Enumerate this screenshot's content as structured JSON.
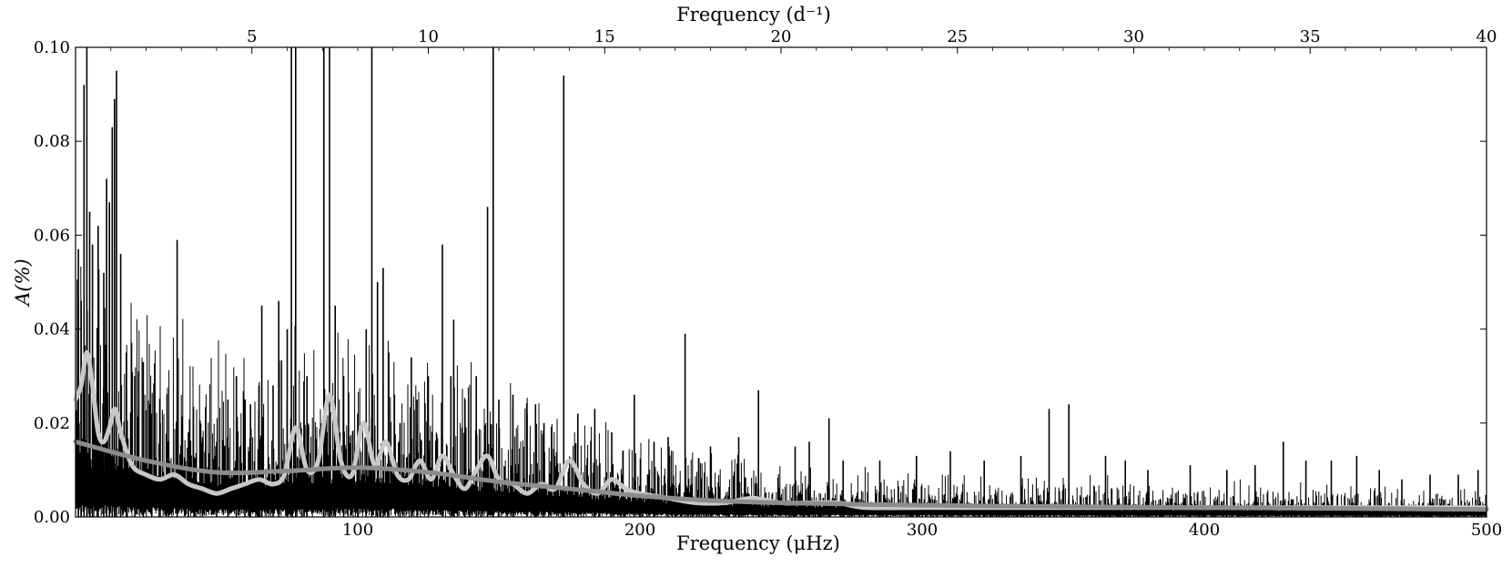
{
  "chart_data": {
    "type": "line",
    "xlabel": "Frequency (μHz)",
    "ylabel": "A(%)",
    "top_xlabel": "Frequency (d⁻¹)",
    "xlim": [
      0,
      500
    ],
    "ylim": [
      0,
      0.1
    ],
    "top_xlim_d": [
      0,
      40
    ],
    "x_ticks": [
      100,
      200,
      300,
      400,
      500
    ],
    "y_ticks": [
      0.0,
      0.02,
      0.04,
      0.06,
      0.08,
      0.1
    ],
    "y_tick_labels": [
      "0.00",
      "0.02",
      "0.04",
      "0.06",
      "0.08",
      "0.10"
    ],
    "top_x_ticks": [
      5,
      10,
      15,
      20,
      25,
      30,
      35,
      40
    ],
    "grid": false,
    "series": [
      {
        "role": "amplitude spectrum",
        "color": "#000000",
        "peaks": [
          [
            1,
            0.057
          ],
          [
            2,
            0.046
          ],
          [
            3,
            0.092
          ],
          [
            4,
            0.1
          ],
          [
            5,
            0.065
          ],
          [
            6,
            0.058
          ],
          [
            8,
            0.062
          ],
          [
            10,
            0.052
          ],
          [
            11,
            0.072
          ],
          [
            12,
            0.067
          ],
          [
            13,
            0.083
          ],
          [
            13.8,
            0.089
          ],
          [
            14.5,
            0.095
          ],
          [
            16,
            0.056
          ],
          [
            18,
            0.035
          ],
          [
            21,
            0.03
          ],
          [
            24,
            0.033
          ],
          [
            27,
            0.022
          ],
          [
            30,
            0.02
          ],
          [
            33,
            0.016
          ],
          [
            36,
            0.059
          ],
          [
            40,
            0.018
          ],
          [
            45,
            0.017
          ],
          [
            50,
            0.016
          ],
          [
            54,
            0.025
          ],
          [
            57,
            0.03
          ],
          [
            60,
            0.025
          ],
          [
            62,
            0.024
          ],
          [
            65,
            0.028
          ],
          [
            66,
            0.045
          ],
          [
            70,
            0.028
          ],
          [
            72,
            0.046
          ],
          [
            75,
            0.04
          ],
          [
            76.5,
            0.1
          ],
          [
            78,
            0.1
          ],
          [
            82,
            0.03
          ],
          [
            88,
            0.1
          ],
          [
            90,
            0.1
          ],
          [
            92,
            0.045
          ],
          [
            95,
            0.03
          ],
          [
            100,
            0.022
          ],
          [
            103,
            0.04
          ],
          [
            105,
            0.1
          ],
          [
            107,
            0.05
          ],
          [
            109,
            0.053
          ],
          [
            111,
            0.035
          ],
          [
            115,
            0.02
          ],
          [
            119,
            0.034
          ],
          [
            121,
            0.025
          ],
          [
            125,
            0.03
          ],
          [
            130,
            0.058
          ],
          [
            133,
            0.03
          ],
          [
            134,
            0.042
          ],
          [
            138,
            0.025
          ],
          [
            142,
            0.03
          ],
          [
            146,
            0.066
          ],
          [
            148,
            0.1
          ],
          [
            150,
            0.025
          ],
          [
            155,
            0.026
          ],
          [
            160,
            0.022
          ],
          [
            163,
            0.024
          ],
          [
            166,
            0.02
          ],
          [
            173,
            0.094
          ],
          [
            178,
            0.022
          ],
          [
            184,
            0.023
          ],
          [
            190,
            0.018
          ],
          [
            198,
            0.026
          ],
          [
            205,
            0.016
          ],
          [
            210,
            0.017
          ],
          [
            216,
            0.039
          ],
          [
            225,
            0.015
          ],
          [
            235,
            0.017
          ],
          [
            242,
            0.027
          ],
          [
            255,
            0.015
          ],
          [
            260,
            0.016
          ],
          [
            267,
            0.021
          ],
          [
            272,
            0.012
          ],
          [
            285,
            0.012
          ],
          [
            298,
            0.013
          ],
          [
            310,
            0.014
          ],
          [
            322,
            0.012
          ],
          [
            335,
            0.013
          ],
          [
            345,
            0.023
          ],
          [
            352,
            0.024
          ],
          [
            365,
            0.013
          ],
          [
            372,
            0.012
          ],
          [
            380,
            0.01
          ],
          [
            395,
            0.011
          ],
          [
            408,
            0.01
          ],
          [
            418,
            0.011
          ],
          [
            428,
            0.016
          ],
          [
            436,
            0.012
          ],
          [
            445,
            0.012
          ],
          [
            454,
            0.013
          ],
          [
            462,
            0.01
          ],
          [
            470,
            0.008
          ],
          [
            480,
            0.009
          ],
          [
            490,
            0.009
          ],
          [
            497,
            0.01
          ]
        ]
      },
      {
        "role": "smoothed spectrum",
        "color": "#c8c8c8",
        "x": [
          0,
          2,
          4,
          6,
          8,
          10,
          12,
          14,
          16,
          20,
          25,
          30,
          35,
          40,
          45,
          50,
          55,
          60,
          65,
          70,
          74,
          78,
          82,
          86,
          90,
          94,
          98,
          102,
          106,
          110,
          114,
          118,
          122,
          126,
          130,
          134,
          138,
          142,
          146,
          150,
          155,
          160,
          165,
          170,
          175,
          180,
          185,
          190,
          195,
          200,
          210,
          220,
          230,
          240,
          250,
          260,
          270,
          280,
          300,
          320,
          340,
          360,
          380,
          400,
          420,
          440,
          460,
          480,
          500
        ],
        "y": [
          0.025,
          0.028,
          0.035,
          0.028,
          0.018,
          0.016,
          0.019,
          0.023,
          0.018,
          0.011,
          0.009,
          0.008,
          0.009,
          0.007,
          0.006,
          0.005,
          0.006,
          0.007,
          0.008,
          0.007,
          0.009,
          0.019,
          0.01,
          0.012,
          0.026,
          0.012,
          0.009,
          0.02,
          0.011,
          0.016,
          0.009,
          0.008,
          0.012,
          0.008,
          0.013,
          0.009,
          0.006,
          0.01,
          0.013,
          0.008,
          0.007,
          0.005,
          0.007,
          0.006,
          0.012,
          0.007,
          0.005,
          0.008,
          0.006,
          0.005,
          0.004,
          0.003,
          0.003,
          0.004,
          0.003,
          0.003,
          0.003,
          0.002,
          0.002,
          0.002,
          0.002,
          0.002,
          0.002,
          0.002,
          0.002,
          0.002,
          0.002,
          0.002,
          0.002
        ]
      },
      {
        "role": "background fit",
        "color": "#8c8c8c",
        "x": [
          0,
          25,
          50,
          75,
          100,
          125,
          150,
          175,
          200,
          225,
          250,
          300,
          350,
          400,
          450,
          500
        ],
        "y": [
          0.016,
          0.012,
          0.0095,
          0.0098,
          0.0105,
          0.0095,
          0.0075,
          0.006,
          0.0045,
          0.0035,
          0.003,
          0.0025,
          0.0022,
          0.002,
          0.0018,
          0.0016
        ]
      }
    ]
  }
}
